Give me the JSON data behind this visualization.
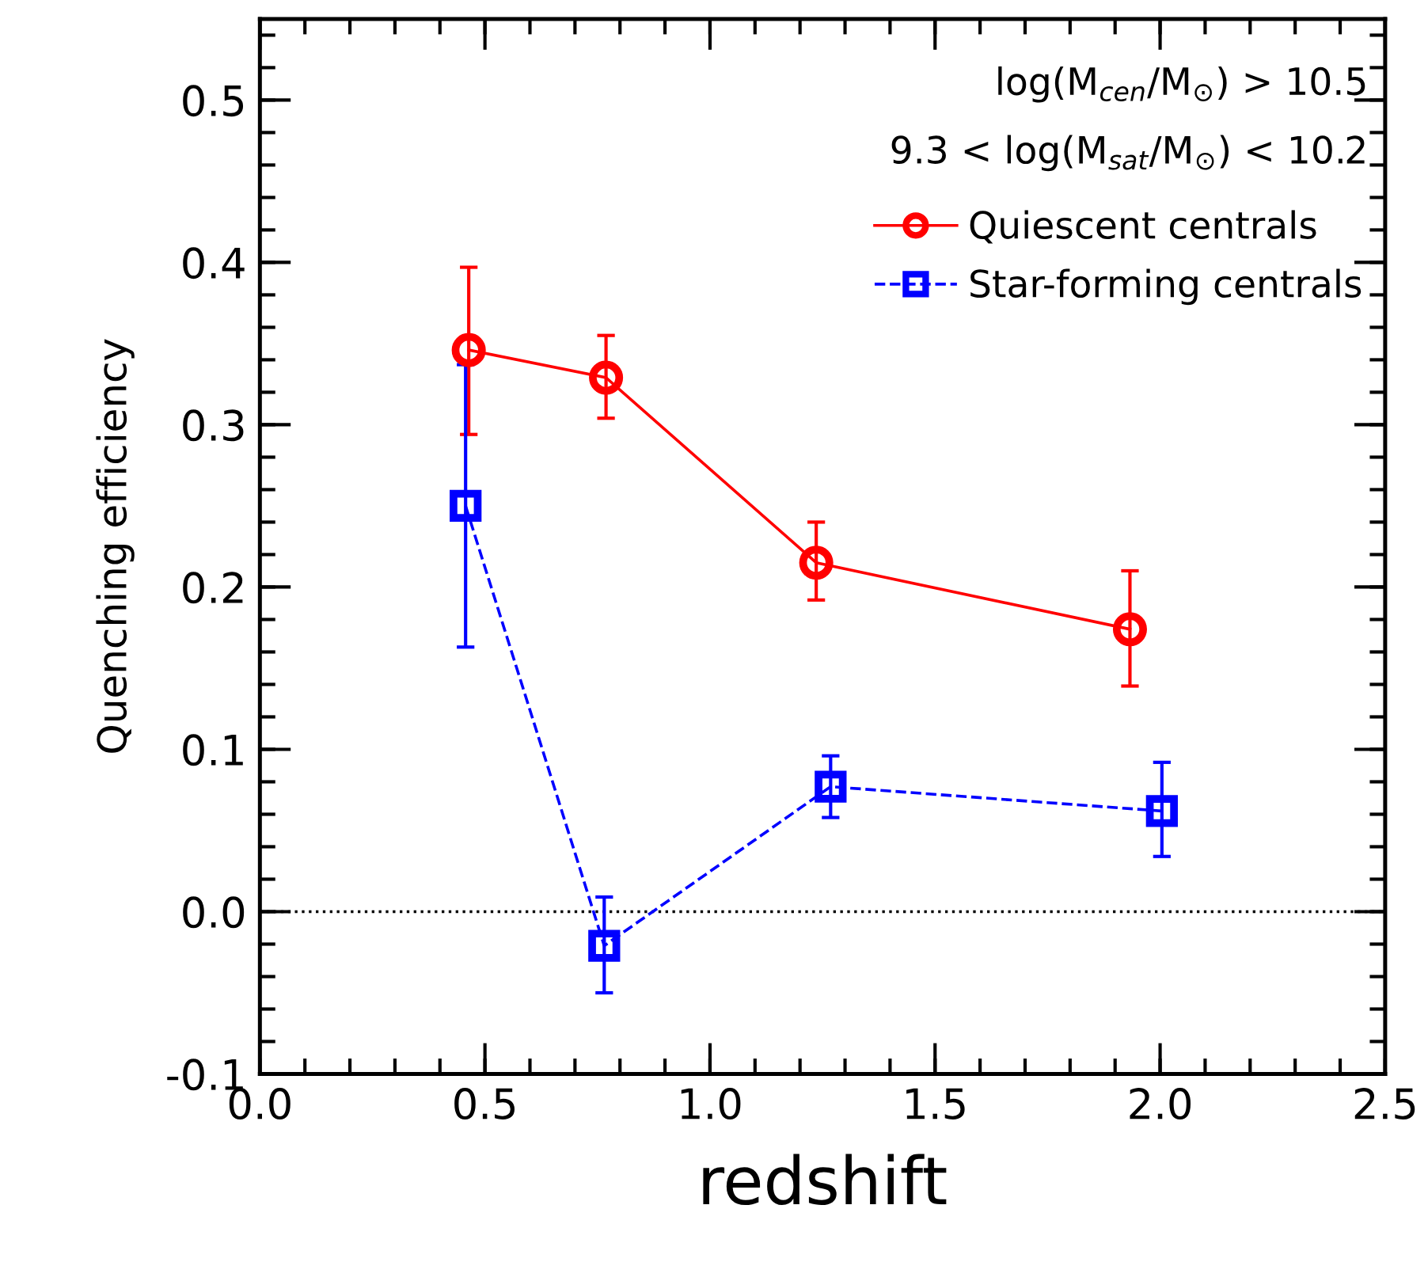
{
  "chart_data": {
    "type": "line",
    "xlabel": "redshift",
    "ylabel": "Quenching efficiency",
    "annotations": [
      "log(M$_{cen}$/M$_{⊙}$) > 10.5",
      "9.3 < log(M$_{sat}$/M$_{⊙}$) < 10.2"
    ],
    "series": [
      {
        "name": "Quiescent centrals",
        "color": "#ff0000",
        "marker": "circle",
        "line_style": "solid",
        "x": [
          0.464,
          0.769,
          1.236,
          1.933
        ],
        "values": [
          0.346,
          0.329,
          0.215,
          0.174
        ],
        "errors": [
          [
            0.294,
            0.397
          ],
          [
            0.304,
            0.355
          ],
          [
            0.192,
            0.24
          ],
          [
            0.139,
            0.21
          ]
        ]
      },
      {
        "name": "Star-forming centrals",
        "color": "#0000ff",
        "marker": "square",
        "line_style": "dashed",
        "x": [
          0.457,
          0.765,
          1.268,
          2.004
        ],
        "values": [
          0.25,
          -0.021,
          0.077,
          0.062
        ],
        "errors": [
          [
            0.163,
            0.337
          ],
          [
            -0.05,
            0.009
          ],
          [
            0.058,
            0.096
          ],
          [
            0.034,
            0.092
          ]
        ]
      }
    ],
    "ref_lines": [
      {
        "axis": "y",
        "value": 0,
        "color": "#000000",
        "line_style": "dotted"
      }
    ],
    "xlim": [
      0.0,
      2.5
    ],
    "xticks": [
      {
        "value": 0.0,
        "label": "0.0"
      },
      0.5,
      {
        "value": 1.0,
        "label": "1.0"
      },
      1.5,
      {
        "value": 2.0,
        "label": "2.0"
      },
      2.5
    ],
    "ylim": [
      -0.1,
      0.55
    ],
    "yticks": [
      -0.1,
      {
        "value": 0.0,
        "label": "0.0"
      },
      0.1,
      0.2,
      0.3,
      0.4,
      0.5
    ],
    "grid": false,
    "legend": "top right"
  }
}
